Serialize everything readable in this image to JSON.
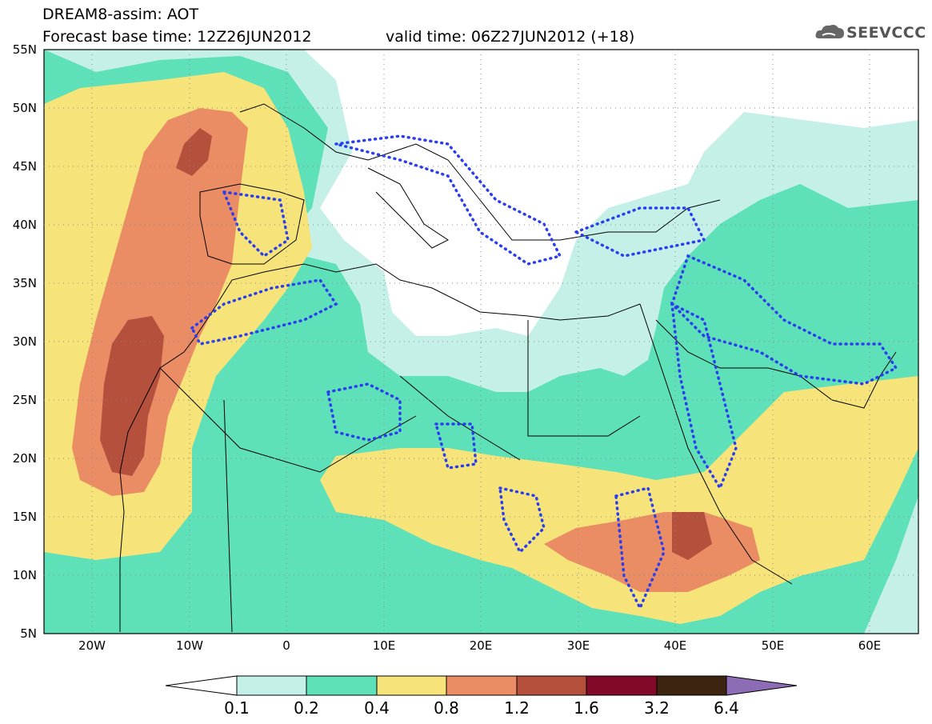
{
  "header": {
    "title_line1": "DREAM8-assim: AOT",
    "title_line2_left": "Forecast base time: 12Z26JUN2012",
    "title_line2_right": "valid time: 06Z27JUN2012 (+18)",
    "logo_text": "SEEVCCC"
  },
  "map": {
    "lat_labels": [
      "55N",
      "50N",
      "45N",
      "40N",
      "35N",
      "30N",
      "25N",
      "20N",
      "15N",
      "10N",
      "5N"
    ],
    "lon_labels": [
      "20W",
      "10W",
      "0",
      "10E",
      "20E",
      "30E",
      "40E",
      "50E",
      "60E"
    ],
    "colors": {
      "c01": "#c4f0e8",
      "c02": "#5ee0b8",
      "c04": "#f6e47a",
      "c08": "#ea8c64",
      "c12": "#b4503c",
      "c16": "#820a28",
      "c32": "#3c2410",
      "c64": "#8c6cb4",
      "dots": "#2a3ef0"
    }
  },
  "colorbar": {
    "labels": [
      "0.1",
      "0.2",
      "0.4",
      "0.8",
      "1.2",
      "1.6",
      "3.2",
      "6.4"
    ]
  }
}
